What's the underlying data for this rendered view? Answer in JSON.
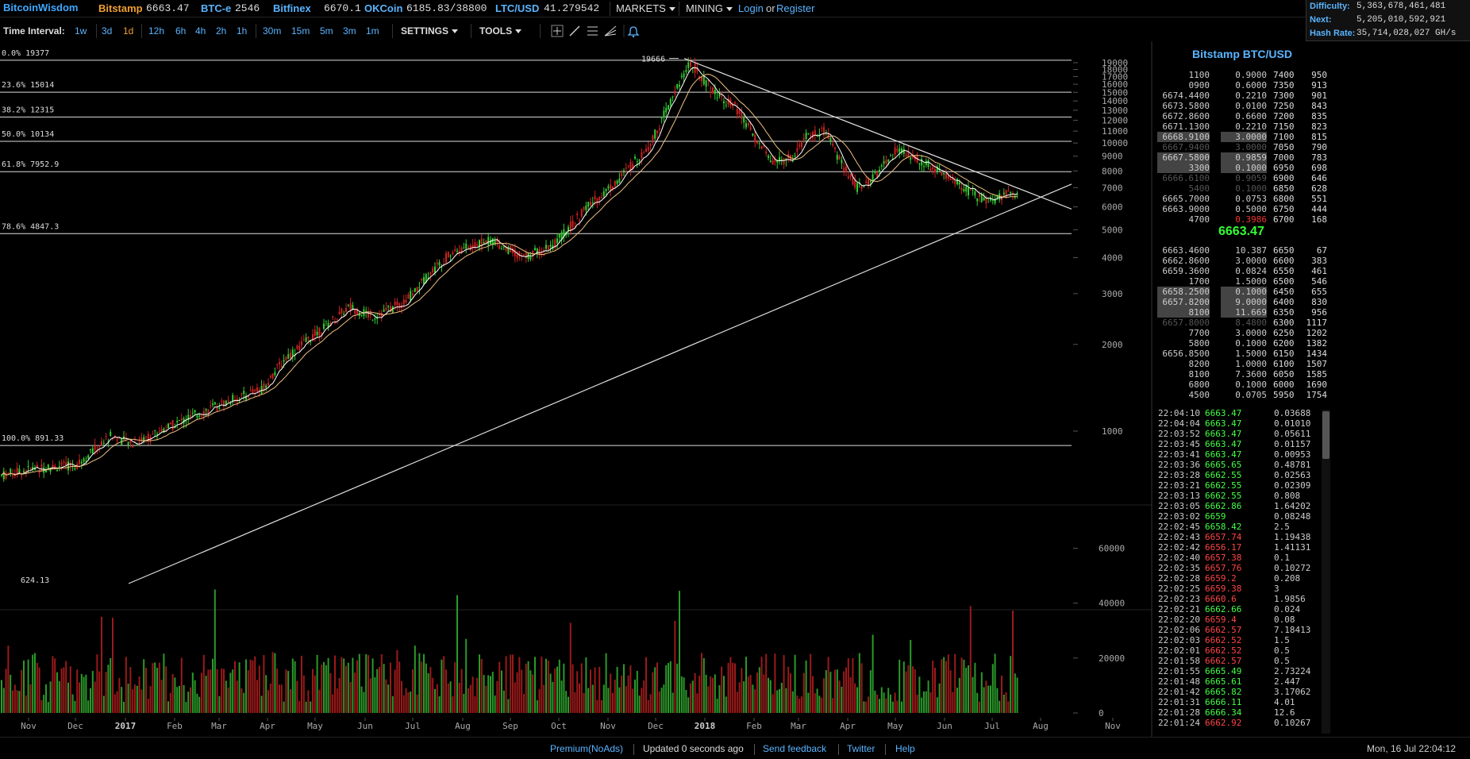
{
  "topbar": {
    "brand": "BitcoinWisdom",
    "tickers": [
      {
        "exchange": "Bitstamp",
        "value": "6663.47"
      },
      {
        "exchange": "BTC-e",
        "value": "2546"
      },
      {
        "exchange": "Bitfinex",
        "value": "6670.1"
      },
      {
        "exchange": "OKCoin",
        "value": "6185.83/38800"
      },
      {
        "exchange": "LTC/USD",
        "value": "41.279542"
      }
    ],
    "markets_label": "MARKETS",
    "mining_label": "MINING",
    "login_label": "Login",
    "or_label": "or",
    "register_label": "Register"
  },
  "stats": {
    "difficulty_label": "Difficulty:",
    "difficulty": "5,363,678,461,481",
    "next_label": "Next:",
    "next": "5,205,010,592,921",
    "hashrate_label": "Hash Rate:",
    "hashrate": "35,714,028,027 GH/s"
  },
  "toolbar": {
    "time_interval_label": "Time Interval:",
    "intervals": [
      "1w",
      "3d",
      "1d",
      "12h",
      "6h",
      "4h",
      "2h",
      "1h",
      "30m",
      "15m",
      "5m",
      "3m",
      "1m"
    ],
    "active_interval": "1d",
    "settings_label": "SETTINGS",
    "tools_label": "TOOLS"
  },
  "chart_data": {
    "type": "candlestick",
    "price_axis_ticks": [
      "19000",
      "18000",
      "17000",
      "16000",
      "15000",
      "14000",
      "13000",
      "12000",
      "11000",
      "10000",
      "9000",
      "8000",
      "7000",
      "6000",
      "5000",
      "4000",
      "3000",
      "2000",
      "1000"
    ],
    "volume_axis_ticks": [
      "60000",
      "40000",
      "20000",
      "0"
    ],
    "x_ticks": [
      "Nov",
      "Dec",
      "2017",
      "Feb",
      "Mar",
      "Apr",
      "May",
      "Jun",
      "Jul",
      "Aug",
      "Sep",
      "Oct",
      "Nov",
      "Dec",
      "2018",
      "Feb",
      "Mar",
      "Apr",
      "May",
      "Jun",
      "Jul",
      "Aug",
      "Nov"
    ],
    "fib_levels": [
      {
        "label": "0.0% 19377",
        "price": 19377
      },
      {
        "label": "23.6% 15014",
        "price": 15014
      },
      {
        "label": "38.2% 12315",
        "price": 12315
      },
      {
        "label": "50.0% 10134",
        "price": 10134
      },
      {
        "label": "61.8% 7952.9",
        "price": 7952.9
      },
      {
        "label": "78.6% 4847.3",
        "price": 4847.3
      },
      {
        "label": "100.0% 891.33",
        "price": 891.33
      }
    ],
    "annotations": {
      "high": "19666",
      "low": "624.13"
    },
    "log_scale": true,
    "colors": {
      "up": "#33cc33",
      "down": "#cc2222",
      "ma_fast": "#ffffff",
      "ma_slow": "#f0c080"
    }
  },
  "orderbook": {
    "title": "Bitstamp BTC/USD",
    "last_price": "6663.47",
    "asks": [
      {
        "price": "",
        "amount": "0.9000",
        "level": "7400",
        "sum": "950",
        "p_tail": "1100"
      },
      {
        "price": "",
        "amount": "0.6000",
        "level": "7350",
        "sum": "913",
        "p_tail": "0900"
      },
      {
        "price": "6674.44",
        "amount": "0.2210",
        "level": "7300",
        "sum": "901",
        "p_tail": "00"
      },
      {
        "price": "6673.58",
        "amount": "0.0100",
        "level": "7250",
        "sum": "843",
        "p_tail": "00"
      },
      {
        "price": "6672.86",
        "amount": "0.6600",
        "level": "7200",
        "sum": "835",
        "p_tail": "00"
      },
      {
        "price": "6671.13",
        "amount": "0.2210",
        "level": "7150",
        "sum": "823",
        "p_tail": "00"
      },
      {
        "price": "6668.91",
        "amount": "3.0000",
        "level": "7100",
        "sum": "815",
        "p_tail": "00",
        "hl": true
      },
      {
        "price": "6667.94",
        "amount": "3.0000",
        "level": "7050",
        "sum": "790",
        "p_tail": "00",
        "dim": true
      },
      {
        "price": "6667.58",
        "amount": "0.9859",
        "level": "7000",
        "sum": "783",
        "p_tail": "00",
        "hl": true
      },
      {
        "price": "",
        "amount": "0.1000",
        "level": "6950",
        "sum": "698",
        "p_tail": "3300",
        "hl": true
      },
      {
        "price": "6666.61",
        "amount": "0.9059",
        "level": "6900",
        "sum": "646",
        "p_tail": "00",
        "dim": true
      },
      {
        "price": "",
        "amount": "0.1000",
        "level": "6850",
        "sum": "628",
        "p_tail": "5400",
        "dim": true
      },
      {
        "price": "6665.70",
        "amount": "0.0753",
        "level": "6800",
        "sum": "551",
        "p_tail": "00"
      },
      {
        "price": "6663.90",
        "amount": "0.5000",
        "level": "6750",
        "sum": "444",
        "p_tail": "00"
      },
      {
        "price": "",
        "amount": "0.3986",
        "level": "6700",
        "sum": "168",
        "p_tail": "4700",
        "red": true
      }
    ],
    "bids": [
      {
        "price": "6663.46",
        "amount": "10.387",
        "level": "6650",
        "sum": "67",
        "p_tail": "00"
      },
      {
        "price": "6662.86",
        "amount": "3.0000",
        "level": "6600",
        "sum": "383",
        "p_tail": "00"
      },
      {
        "price": "6659.36",
        "amount": "0.0824",
        "level": "6550",
        "sum": "461",
        "p_tail": "00"
      },
      {
        "price": "",
        "amount": "1.5000",
        "level": "6500",
        "sum": "546",
        "p_tail": "1700"
      },
      {
        "price": "6658.25",
        "amount": "0.1000",
        "level": "6450",
        "sum": "655",
        "p_tail": "00",
        "hl": true
      },
      {
        "price": "6657.82",
        "amount": "9.0000",
        "level": "6400",
        "sum": "830",
        "p_tail": "00",
        "hl": true
      },
      {
        "price": "",
        "amount": "11.669",
        "level": "6350",
        "sum": "956",
        "p_tail": "8100",
        "hl": true
      },
      {
        "price": "6657.80",
        "amount": "8.4800",
        "level": "6300",
        "sum": "1117",
        "p_tail": "00",
        "dim": true
      },
      {
        "price": "",
        "amount": "3.0000",
        "level": "6250",
        "sum": "1202",
        "p_tail": "7700"
      },
      {
        "price": "",
        "amount": "0.1000",
        "level": "6200",
        "sum": "1382",
        "p_tail": "5800"
      },
      {
        "price": "6656.85",
        "amount": "1.5000",
        "level": "6150",
        "sum": "1434",
        "p_tail": "00"
      },
      {
        "price": "",
        "amount": "1.0000",
        "level": "6100",
        "sum": "1507",
        "p_tail": "8200"
      },
      {
        "price": "",
        "amount": "7.3600",
        "level": "6050",
        "sum": "1585",
        "p_tail": "8100"
      },
      {
        "price": "",
        "amount": "0.1000",
        "level": "6000",
        "sum": "1690",
        "p_tail": "6800"
      },
      {
        "price": "",
        "amount": "0.0705",
        "level": "5950",
        "sum": "1754",
        "p_tail": "4500"
      }
    ]
  },
  "trades": [
    {
      "time": "22:04:10",
      "price": "6663.47",
      "dir": "g",
      "amount": "0.03688"
    },
    {
      "time": "22:04:04",
      "price": "6663.47",
      "dir": "g",
      "amount": "0.01010"
    },
    {
      "time": "22:03:52",
      "price": "6663.47",
      "dir": "g",
      "amount": "0.05611"
    },
    {
      "time": "22:03:45",
      "price": "6663.47",
      "dir": "g",
      "amount": "0.01157"
    },
    {
      "time": "22:03:41",
      "price": "6663.47",
      "dir": "g",
      "amount": "0.00953"
    },
    {
      "time": "22:03:36",
      "price": "6665.65",
      "dir": "g",
      "amount": "0.48781"
    },
    {
      "time": "22:03:28",
      "price": "6662.55",
      "dir": "g",
      "amount": "0.02563"
    },
    {
      "time": "22:03:21",
      "price": "6662.55",
      "dir": "g",
      "amount": "0.02309"
    },
    {
      "time": "22:03:13",
      "price": "6662.55",
      "dir": "g",
      "amount": "0.808"
    },
    {
      "time": "22:03:05",
      "price": "6662.86",
      "dir": "g",
      "amount": "1.64202"
    },
    {
      "time": "22:03:02",
      "price": "6659",
      "dir": "g",
      "amount": "0.08248"
    },
    {
      "time": "22:02:45",
      "price": "6658.42",
      "dir": "g",
      "amount": "2.5"
    },
    {
      "time": "22:02:43",
      "price": "6657.74",
      "dir": "r",
      "amount": "1.19438"
    },
    {
      "time": "22:02:42",
      "price": "6656.17",
      "dir": "r",
      "amount": "1.41131"
    },
    {
      "time": "22:02:40",
      "price": "6657.38",
      "dir": "r",
      "amount": "0.1"
    },
    {
      "time": "22:02:35",
      "price": "6657.76",
      "dir": "r",
      "amount": "0.10272"
    },
    {
      "time": "22:02:28",
      "price": "6659.2",
      "dir": "r",
      "amount": "0.208"
    },
    {
      "time": "22:02:25",
      "price": "6659.38",
      "dir": "r",
      "amount": "3"
    },
    {
      "time": "22:02:23",
      "price": "6660.6",
      "dir": "r",
      "amount": "1.9856"
    },
    {
      "time": "22:02:21",
      "price": "6662.66",
      "dir": "g",
      "amount": "0.024"
    },
    {
      "time": "22:02:20",
      "price": "6659.4",
      "dir": "r",
      "amount": "0.08"
    },
    {
      "time": "22:02:06",
      "price": "6662.57",
      "dir": "r",
      "amount": "7.18413"
    },
    {
      "time": "22:02:03",
      "price": "6662.52",
      "dir": "r",
      "amount": "1.5"
    },
    {
      "time": "22:02:01",
      "price": "6662.52",
      "dir": "r",
      "amount": "0.5"
    },
    {
      "time": "22:01:58",
      "price": "6662.57",
      "dir": "r",
      "amount": "0.5"
    },
    {
      "time": "22:01:55",
      "price": "6665.49",
      "dir": "g",
      "amount": "2.73224"
    },
    {
      "time": "22:01:48",
      "price": "6665.61",
      "dir": "g",
      "amount": "2.447"
    },
    {
      "time": "22:01:42",
      "price": "6665.82",
      "dir": "g",
      "amount": "3.17062"
    },
    {
      "time": "22:01:31",
      "price": "6666.11",
      "dir": "g",
      "amount": "4.01"
    },
    {
      "time": "22:01:28",
      "price": "6666.34",
      "dir": "g",
      "amount": "12.6"
    },
    {
      "time": "22:01:24",
      "price": "6662.92",
      "dir": "r",
      "amount": "0.10267"
    }
  ],
  "footer": {
    "premium": "Premium(NoAds)",
    "updated": "Updated 0 seconds ago",
    "feedback": "Send feedback",
    "twitter": "Twitter",
    "help": "Help",
    "datetime": "Mon, 16 Jul 22:04:12"
  }
}
